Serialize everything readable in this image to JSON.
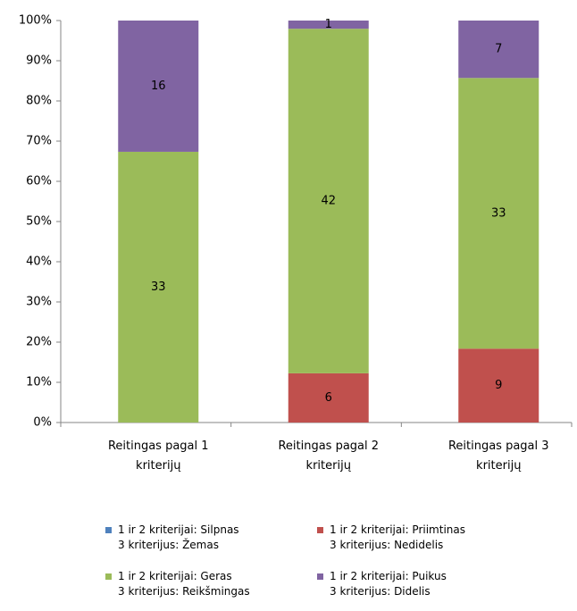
{
  "chart_data": {
    "type": "bar",
    "stacking": "percent",
    "categories": [
      "Reitingas pagal 1 kriterijų",
      "Reitingas pagal 2 kriterijų",
      "Reitingas pagal 3 kriterijų"
    ],
    "series": [
      {
        "name": "1 ir 2 kriterijai: Silpnas\n3 kriterijus:  Žemas",
        "color": "#4f81bd",
        "values": [
          0,
          0,
          0
        ]
      },
      {
        "name": "1 ir 2 kriterijai: Priimtinas\n3 kriterijus: Nedidelis",
        "color": "#c0504d",
        "values": [
          0,
          6,
          9
        ]
      },
      {
        "name": "1 ir 2 kriterijai: Geras\n3 kriterijus: Reikšmingas",
        "color": "#9bbb59",
        "values": [
          33,
          42,
          33
        ]
      },
      {
        "name": "1 ir 2 kriterijai: Puikus\n3 kriterijus: Didelis",
        "color": "#8064a2",
        "values": [
          16,
          1,
          7
        ]
      }
    ],
    "ylim": [
      0,
      100
    ],
    "yticks": [
      {
        "value": 0,
        "label": "0%"
      },
      {
        "value": 10,
        "label": "10%"
      },
      {
        "value": 20,
        "label": "20%"
      },
      {
        "value": 30,
        "label": "30%"
      },
      {
        "value": 40,
        "label": "40%"
      },
      {
        "value": 50,
        "label": "50%"
      },
      {
        "value": 60,
        "label": "60%"
      },
      {
        "value": 70,
        "label": "70%"
      },
      {
        "value": 80,
        "label": "80%"
      },
      {
        "value": 90,
        "label": "90%"
      },
      {
        "value": 100,
        "label": "100%"
      }
    ],
    "legend": "bottom"
  }
}
